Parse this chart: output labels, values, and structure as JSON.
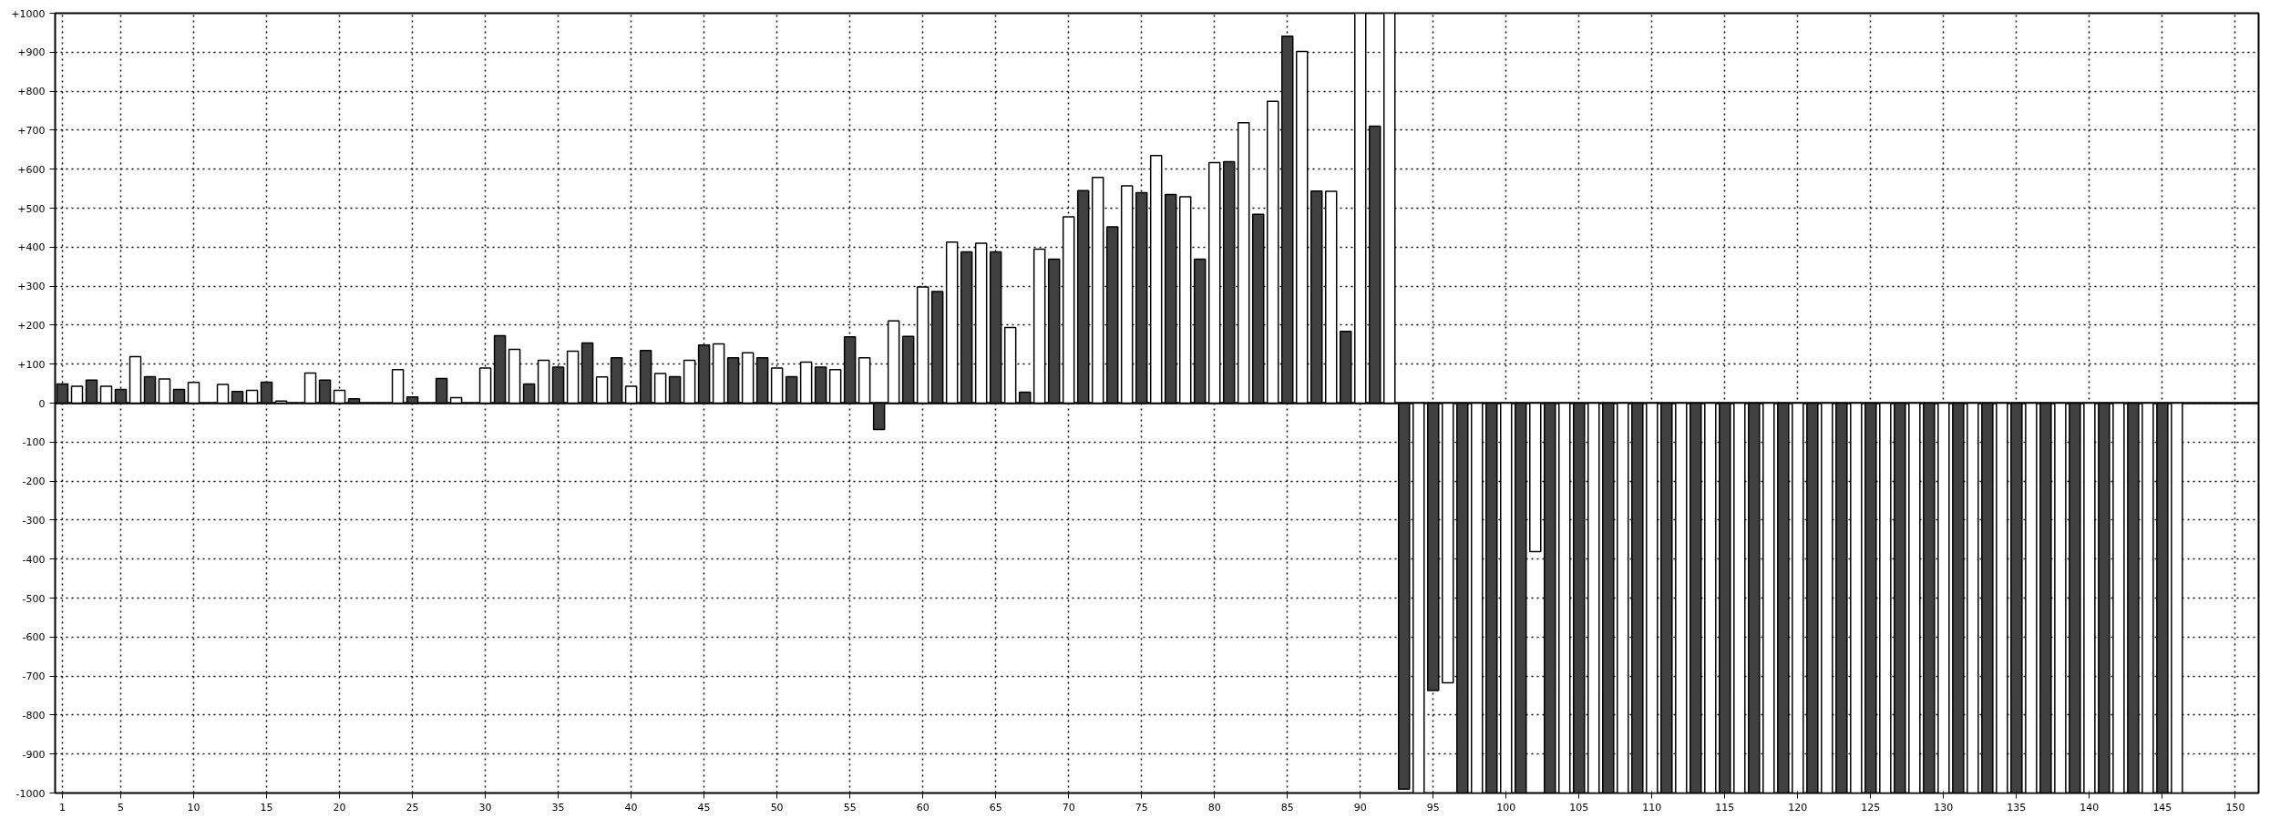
{
  "chart_data": {
    "type": "bar",
    "series": [
      {
        "color": "#404040",
        "x": [
          1,
          3,
          5,
          7,
          9,
          11,
          13,
          15,
          17,
          19,
          21,
          23,
          25,
          27,
          29,
          31,
          33,
          35,
          37,
          39,
          41,
          43,
          45,
          47,
          49,
          51,
          53,
          55,
          57,
          59,
          61,
          63,
          65,
          67,
          69,
          71,
          73,
          75,
          77,
          79,
          81,
          83,
          85,
          87,
          89,
          91,
          93,
          95,
          97,
          99,
          101,
          103,
          105,
          107,
          109,
          111,
          113,
          115,
          117,
          119,
          121,
          123,
          125,
          127,
          129,
          131,
          133,
          135,
          137,
          139,
          141,
          143,
          145
        ],
        "values": [
          49,
          59,
          35,
          68,
          35,
          null,
          30,
          54,
          null,
          59,
          11,
          null,
          16,
          63,
          null,
          173,
          49,
          92,
          154,
          116,
          135,
          68,
          149,
          116,
          116,
          68,
          92,
          170,
          -68,
          171,
          286,
          388,
          388,
          28,
          369,
          545,
          452,
          540,
          535,
          369,
          619,
          484,
          941,
          544,
          184,
          710,
          -990,
          -737,
          -1000,
          -1000,
          -1000,
          -1000,
          -1000,
          -1000,
          -1000,
          -1000,
          -1000,
          -1000,
          -1000,
          -1000,
          -1000,
          -1000,
          -1000,
          -1000,
          -1000,
          -1000,
          -1000,
          -1000,
          -1000,
          -1000,
          -1000,
          -1000,
          -1000
        ]
      },
      {
        "color": "#ffffff",
        "x": [
          2,
          4,
          6,
          8,
          10,
          12,
          14,
          16,
          18,
          20,
          22,
          24,
          26,
          28,
          30,
          32,
          34,
          36,
          38,
          40,
          42,
          44,
          46,
          48,
          50,
          52,
          54,
          56,
          58,
          60,
          62,
          64,
          66,
          68,
          70,
          72,
          74,
          76,
          78,
          80,
          82,
          84,
          86,
          88,
          90,
          92,
          94,
          96,
          98,
          100,
          102,
          104,
          106,
          108,
          110,
          112,
          114,
          116,
          118,
          120,
          122,
          124,
          126,
          128,
          130,
          132,
          134,
          136,
          138,
          140,
          142,
          144,
          146
        ],
        "values": [
          43,
          43,
          119,
          62,
          53,
          48,
          33,
          5,
          77,
          33,
          null,
          86,
          null,
          14,
          90,
          138,
          110,
          133,
          67,
          43,
          76,
          110,
          152,
          129,
          90,
          105,
          86,
          116,
          211,
          298,
          413,
          410,
          194,
          395,
          478,
          579,
          557,
          635,
          529,
          617,
          719,
          774,
          902,
          543,
          1000,
          1000,
          -1000,
          -717,
          -1000,
          -1000,
          -381,
          -1000,
          -1000,
          -1000,
          -1000,
          -1000,
          -1000,
          -1000,
          -1000,
          -1000,
          -1000,
          -1000,
          -1000,
          -1000,
          -1000,
          -1000,
          -1000,
          -1000,
          -1000,
          -1000,
          -1000,
          -1000,
          -1000
        ]
      }
    ],
    "xlim": [
      0.5,
      151.6
    ],
    "xticks": [
      1,
      5,
      10,
      15,
      20,
      25,
      30,
      35,
      40,
      45,
      50,
      55,
      60,
      65,
      70,
      75,
      80,
      85,
      90,
      95,
      100,
      105,
      110,
      115,
      120,
      125,
      130,
      135,
      140,
      145,
      150
    ],
    "ylim": [
      -1000,
      1000
    ],
    "yticks": [
      {
        "value": -1000,
        "label": "-1000"
      },
      {
        "value": -900,
        "label": "-900"
      },
      {
        "value": -800,
        "label": "-800"
      },
      {
        "value": -700,
        "label": "-700"
      },
      {
        "value": -600,
        "label": "-600"
      },
      {
        "value": -500,
        "label": "-500"
      },
      {
        "value": -400,
        "label": "-400"
      },
      {
        "value": -300,
        "label": "-300"
      },
      {
        "value": -200,
        "label": "-200"
      },
      {
        "value": -100,
        "label": "-100"
      },
      {
        "value": 0,
        "label": "0"
      },
      {
        "value": 100,
        "label": "+100"
      },
      {
        "value": 200,
        "label": "+200"
      },
      {
        "value": 300,
        "label": "+300"
      },
      {
        "value": 400,
        "label": "+400"
      },
      {
        "value": 500,
        "label": "+500"
      },
      {
        "value": 600,
        "label": "+600"
      },
      {
        "value": 700,
        "label": "+700"
      },
      {
        "value": 800,
        "label": "+800"
      },
      {
        "value": 900,
        "label": "+900"
      },
      {
        "value": 1000,
        "label": "+1000"
      }
    ],
    "ref_lines": [
      {
        "axis": "y",
        "value": 0,
        "color": "#000000"
      }
    ],
    "grid": true
  }
}
